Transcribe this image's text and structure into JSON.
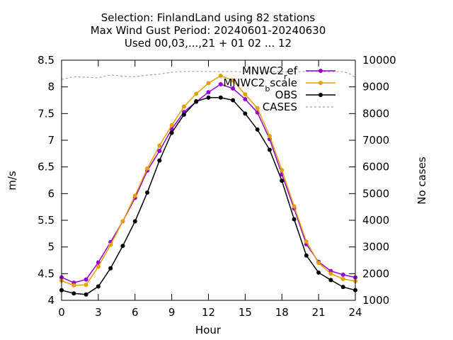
{
  "chart_data": {
    "type": "line",
    "title_lines": [
      "Selection: FinlandLand using    82 stations",
      "Max Wind Gust   Period: 20240601-20240630",
      "Used 00,03,...,21 + 01 02 ... 12"
    ],
    "xlabel": "Hour",
    "ylabel": "m/s",
    "y2label": "No cases",
    "xlim": [
      0,
      24
    ],
    "ylim": [
      4,
      8.5
    ],
    "y2lim": [
      1000,
      10000
    ],
    "xticks": [
      0,
      3,
      6,
      9,
      12,
      15,
      18,
      21,
      24
    ],
    "xtick_labels": [
      "0",
      "3",
      "6",
      "9",
      "12",
      "15",
      "18",
      "21",
      "24"
    ],
    "yticks": [
      4,
      4.5,
      5,
      5.5,
      6,
      6.5,
      7,
      7.5,
      8,
      8.5
    ],
    "ytick_labels": [
      "4",
      "4.5",
      "5",
      "5.5",
      "6",
      "6.5",
      "7",
      "7.5",
      "8",
      "8.5"
    ],
    "y2ticks": [
      1000,
      2000,
      3000,
      4000,
      5000,
      6000,
      7000,
      8000,
      9000,
      10000
    ],
    "y2tick_labels": [
      "1000",
      "2000",
      "3000",
      "4000",
      "5000",
      "6000",
      "7000",
      "8000",
      "9000",
      "10000"
    ],
    "grid": false,
    "legend_position": "top-right",
    "x": [
      0,
      1,
      2,
      3,
      4,
      5,
      6,
      7,
      8,
      9,
      10,
      11,
      12,
      13,
      14,
      15,
      16,
      17,
      18,
      19,
      20,
      21,
      22,
      23,
      24
    ],
    "series": [
      {
        "name": "MNWC2_ref",
        "legend_main": "MNWC2",
        "legend_sub": "r",
        "legend_rest": "ef",
        "color": "#9400d3",
        "axis": "y1",
        "style": "line-points",
        "values": [
          4.43,
          4.33,
          4.39,
          4.71,
          5.09,
          5.48,
          5.92,
          6.43,
          6.8,
          7.21,
          7.53,
          7.72,
          7.9,
          8.05,
          7.97,
          7.77,
          7.52,
          7.02,
          6.36,
          5.72,
          5.05,
          4.72,
          4.55,
          4.48,
          4.43
        ]
      },
      {
        "name": "MNWC2_bscale",
        "legend_main": "MNWC2",
        "legend_sub": "b",
        "legend_rest": "scale",
        "color": "#e69f00",
        "axis": "y1",
        "style": "line-points",
        "values": [
          4.37,
          4.28,
          4.29,
          4.63,
          5.04,
          5.48,
          5.96,
          6.47,
          6.9,
          7.28,
          7.63,
          7.87,
          8.07,
          8.21,
          8.12,
          7.86,
          7.6,
          7.08,
          6.44,
          5.76,
          5.1,
          4.7,
          4.5,
          4.4,
          4.36
        ]
      },
      {
        "name": "OBS",
        "legend_main": "OBS",
        "color": "#000000",
        "axis": "y1",
        "style": "line-points",
        "values": [
          4.19,
          4.13,
          4.11,
          4.26,
          4.6,
          5.02,
          5.48,
          6.02,
          6.62,
          7.14,
          7.48,
          7.73,
          7.8,
          7.8,
          7.75,
          7.5,
          7.2,
          6.82,
          6.24,
          5.52,
          4.84,
          4.52,
          4.38,
          4.25,
          4.19
        ]
      },
      {
        "name": "CASES",
        "legend_main": "CASES",
        "color": "#a0a0a0",
        "axis": "y2",
        "style": "dashed",
        "x": [
          0,
          1,
          2,
          3,
          4,
          5,
          6,
          7,
          8,
          9,
          10,
          11,
          12,
          13,
          14,
          15,
          16,
          17,
          18,
          19,
          20,
          21,
          22,
          23,
          23.5,
          24
        ],
        "values": [
          9280,
          9380,
          9360,
          9340,
          9450,
          9400,
          9380,
          9440,
          9480,
          9550,
          9580,
          9580,
          9580,
          9570,
          9580,
          9560,
          9550,
          9560,
          9570,
          9560,
          9580,
          9580,
          9570,
          9570,
          9500,
          9350
        ]
      }
    ]
  }
}
